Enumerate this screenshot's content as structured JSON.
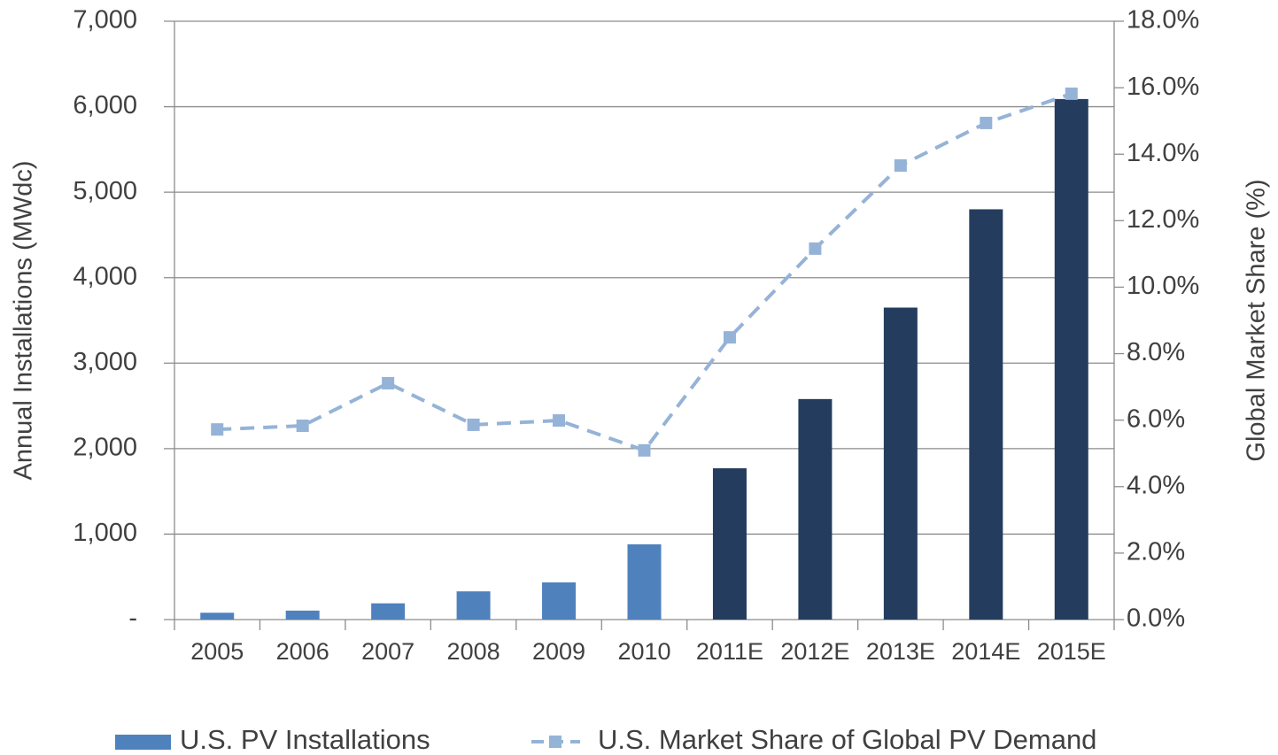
{
  "chart_data": {
    "type": "bar_line",
    "categories": [
      "2005",
      "2006",
      "2007",
      "2008",
      "2009",
      "2010",
      "2011E",
      "2012E",
      "2013E",
      "2014E",
      "2015E"
    ],
    "series": [
      {
        "name": "U.S. PV Installations",
        "type": "bar",
        "color": "#4f81bd",
        "colors": [
          "#4f81bd",
          "#4f81bd",
          "#4f81bd",
          "#4f81bd",
          "#4f81bd",
          "#4f81bd",
          "#243d5f",
          "#243d5f",
          "#243d5f",
          "#243d5f",
          "#243d5f"
        ],
        "values": [
          80,
          105,
          190,
          330,
          435,
          880,
          1770,
          2580,
          3650,
          4800,
          6090
        ]
      },
      {
        "name": "U.S. Market Share of Global PV Demand",
        "type": "line",
        "axis": "y2",
        "color": "#95b3d7",
        "dashed": true,
        "marker": "square",
        "values": [
          5.72,
          5.83,
          7.11,
          5.86,
          5.99,
          5.09,
          8.49,
          11.16,
          13.66,
          14.94,
          15.82
        ]
      }
    ],
    "ylabel": "Annual Installations (MWdc)",
    "y2label": "Global Market Share (%)",
    "ylim": [
      0,
      7000
    ],
    "yticks": [
      {
        "value": 0,
        "label": "-"
      },
      {
        "value": 1000,
        "label": "1,000"
      },
      {
        "value": 2000,
        "label": "2,000"
      },
      {
        "value": 3000,
        "label": "3,000"
      },
      {
        "value": 4000,
        "label": "4,000"
      },
      {
        "value": 5000,
        "label": "5,000"
      },
      {
        "value": 6000,
        "label": "6,000"
      },
      {
        "value": 7000,
        "label": "7,000"
      }
    ],
    "y2lim": [
      0,
      18
    ],
    "y2ticks": [
      {
        "value": 0,
        "label": "0.0%"
      },
      {
        "value": 2,
        "label": "2.0%"
      },
      {
        "value": 4,
        "label": "4.0%"
      },
      {
        "value": 6,
        "label": "6.0%"
      },
      {
        "value": 8,
        "label": "8.0%"
      },
      {
        "value": 10,
        "label": "10.0%"
      },
      {
        "value": 12,
        "label": "12.0%"
      },
      {
        "value": 14,
        "label": "14.0%"
      },
      {
        "value": 16,
        "label": "16.0%"
      },
      {
        "value": 18,
        "label": "18.0%"
      }
    ],
    "grid": true,
    "legend": "bottom"
  }
}
